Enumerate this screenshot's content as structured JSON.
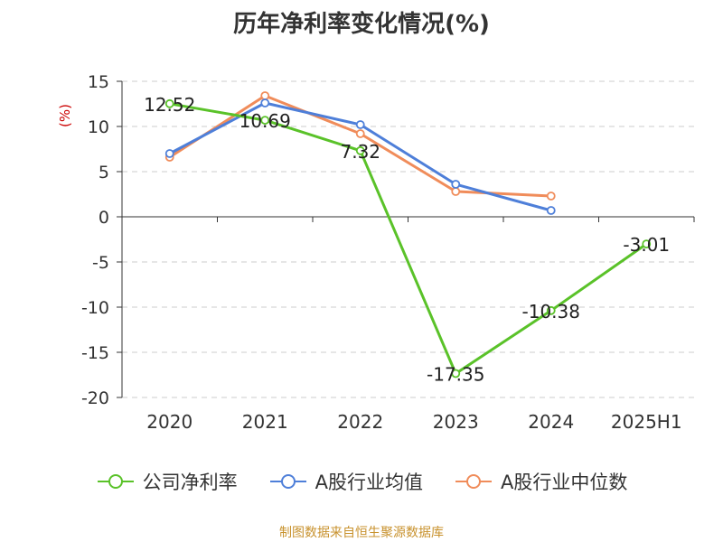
{
  "chart_data": {
    "type": "line",
    "title": "历年净利率变化情况(%)",
    "ylabel": "(%)",
    "categories": [
      "2020",
      "2021",
      "2022",
      "2023",
      "2024",
      "2025H1"
    ],
    "yticks": [
      "15",
      "10",
      "5",
      "0",
      "-5",
      "-10",
      "-15",
      "-20"
    ],
    "ylim": [
      -20,
      15
    ],
    "grid": true,
    "legend_position": "bottom",
    "series": [
      {
        "name": "公司净利率",
        "color": "#5ac229",
        "values": [
          12.52,
          10.69,
          7.32,
          -17.35,
          -10.38,
          -3.01
        ],
        "labels": [
          "12.52",
          "10.69",
          "7.32",
          "-17.35",
          "-10.38",
          "-3.01"
        ]
      },
      {
        "name": "A股行业均值",
        "color": "#4e7fd9",
        "values": [
          7.0,
          12.6,
          10.2,
          3.6,
          0.7,
          null
        ]
      },
      {
        "name": "A股行业中位数",
        "color": "#f08c5a",
        "values": [
          6.6,
          13.4,
          9.2,
          2.8,
          2.3,
          null
        ]
      }
    ],
    "source": "制图数据来自恒生聚源数据库"
  }
}
